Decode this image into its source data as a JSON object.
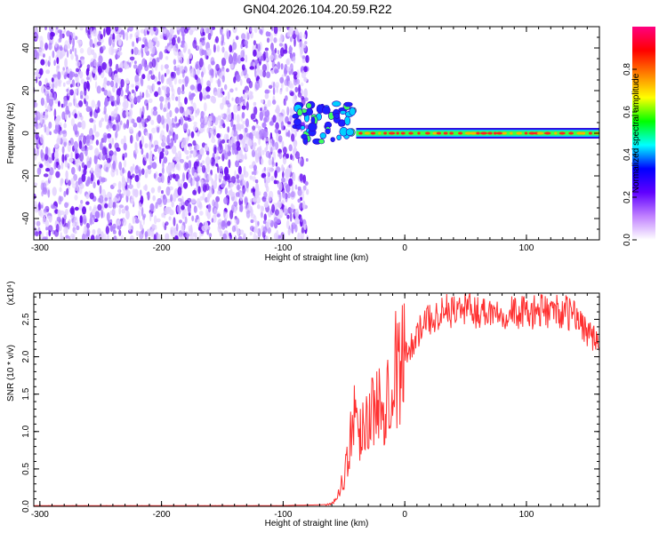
{
  "title": "GN04.2026.104.20.59.R22",
  "chart_data": [
    {
      "type": "heatmap",
      "xlabel": "Height of straight line (km)",
      "ylabel": "Frequency (Hz)",
      "xlim": [
        -305,
        160
      ],
      "ylim": [
        -50,
        50
      ],
      "xticks": [
        -300,
        -200,
        -100,
        0,
        100
      ],
      "yticks": [
        -40,
        -20,
        0,
        20,
        40
      ],
      "colorbar": {
        "label": "Normalized spectral amplitude",
        "range": [
          0,
          1
        ],
        "ticks": [
          "0.0",
          "0.2",
          "0.4",
          "0.6",
          "0.8"
        ],
        "colors": [
          "#ffffff",
          "#c080ff",
          "#6000ff",
          "#0000ff",
          "#00ffff",
          "#00ff00",
          "#ffff00",
          "#ff8000",
          "#ff0000",
          "#ff0080"
        ]
      },
      "features": [
        {
          "name": "noise region",
          "x_range": [
            -305,
            -80
          ],
          "y_range": [
            -50,
            50
          ],
          "amplitude": 0.1
        },
        {
          "name": "signal onset",
          "x_range": [
            -90,
            -40
          ],
          "y_center": 5,
          "amplitude": 0.4
        },
        {
          "name": "carrier line",
          "x_range": [
            -40,
            160
          ],
          "y_center": 0,
          "amplitude": 0.95
        }
      ]
    },
    {
      "type": "line",
      "xlabel": "Height of straight line (km)",
      "ylabel": "SNR (10 * v/v)",
      "y_multiplier": "(x10⁴)",
      "xlim": [
        -305,
        160
      ],
      "ylim": [
        0,
        2.85
      ],
      "xticks": [
        -300,
        -200,
        -100,
        0,
        100
      ],
      "yticks": [
        "0.0",
        "0.5",
        "1.0",
        "1.5",
        "2.0",
        "2.5"
      ],
      "series": [
        {
          "color": "#ff3030",
          "x": [
            -305,
            -200,
            -100,
            -70,
            -60,
            -55,
            -50,
            -45,
            -42,
            -40,
            -38,
            -35,
            -32,
            -30,
            -28,
            -25,
            -22,
            -20,
            -18,
            -15,
            -10,
            -5,
            0,
            5,
            10,
            15,
            20,
            25,
            30,
            40,
            50,
            60,
            70,
            80,
            90,
            100,
            110,
            120,
            130,
            140,
            145,
            150,
            155,
            160
          ],
          "y": [
            0.01,
            0.01,
            0.01,
            0.02,
            0.03,
            0.15,
            0.4,
            0.8,
            1.4,
            1.2,
            0.9,
            1.1,
            1.3,
            1.0,
            1.4,
            1.2,
            1.3,
            1.5,
            1.4,
            1.6,
            1.8,
            1.9,
            2.0,
            2.15,
            2.3,
            2.4,
            2.5,
            2.55,
            2.6,
            2.62,
            2.65,
            2.6,
            2.62,
            2.6,
            2.6,
            2.58,
            2.6,
            2.62,
            2.6,
            2.55,
            2.45,
            2.35,
            2.25,
            2.1
          ]
        }
      ]
    }
  ]
}
